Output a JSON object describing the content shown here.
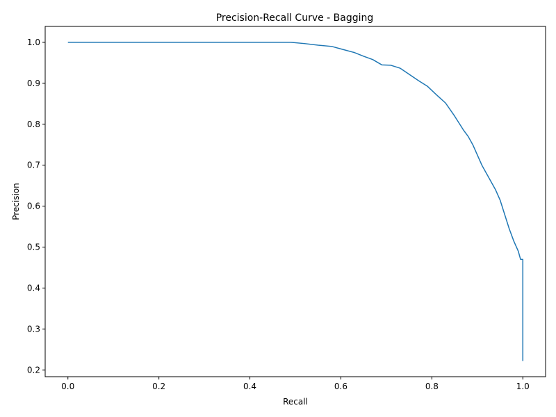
{
  "chart_data": {
    "type": "line",
    "title": "Precision-Recall Curve - Bagging",
    "xlabel": "Recall",
    "ylabel": "Precision",
    "xlim": [
      -0.05,
      1.05
    ],
    "ylim": [
      0.1835,
      1.0389
    ],
    "xticks": [
      0.0,
      0.2,
      0.4,
      0.6,
      0.8,
      1.0
    ],
    "xtick_labels": [
      "0.0",
      "0.2",
      "0.4",
      "0.6",
      "0.8",
      "1.0"
    ],
    "yticks": [
      0.2,
      0.3,
      0.4,
      0.5,
      0.6,
      0.7,
      0.8,
      0.9,
      1.0
    ],
    "ytick_labels": [
      "0.2",
      "0.3",
      "0.4",
      "0.5",
      "0.6",
      "0.7",
      "0.8",
      "0.9",
      "1.0"
    ],
    "grid": false,
    "series": [
      {
        "color": "#1f77b4",
        "x": [
          0.0,
          0.1,
          0.2,
          0.3,
          0.4,
          0.49,
          0.52,
          0.55,
          0.58,
          0.6,
          0.63,
          0.65,
          0.67,
          0.69,
          0.71,
          0.73,
          0.75,
          0.77,
          0.79,
          0.81,
          0.83,
          0.85,
          0.87,
          0.88,
          0.89,
          0.9,
          0.91,
          0.92,
          0.93,
          0.94,
          0.95,
          0.96,
          0.97,
          0.98,
          0.99,
          0.995,
          1.0,
          1.0
        ],
        "y": [
          1.0,
          1.0,
          1.0,
          1.0,
          1.0,
          1.0,
          0.997,
          0.993,
          0.99,
          0.984,
          0.975,
          0.966,
          0.958,
          0.945,
          0.944,
          0.937,
          0.922,
          0.907,
          0.893,
          0.872,
          0.852,
          0.82,
          0.785,
          0.77,
          0.75,
          0.725,
          0.7,
          0.68,
          0.66,
          0.64,
          0.615,
          0.58,
          0.545,
          0.515,
          0.49,
          0.47,
          0.47,
          0.222
        ]
      }
    ]
  }
}
